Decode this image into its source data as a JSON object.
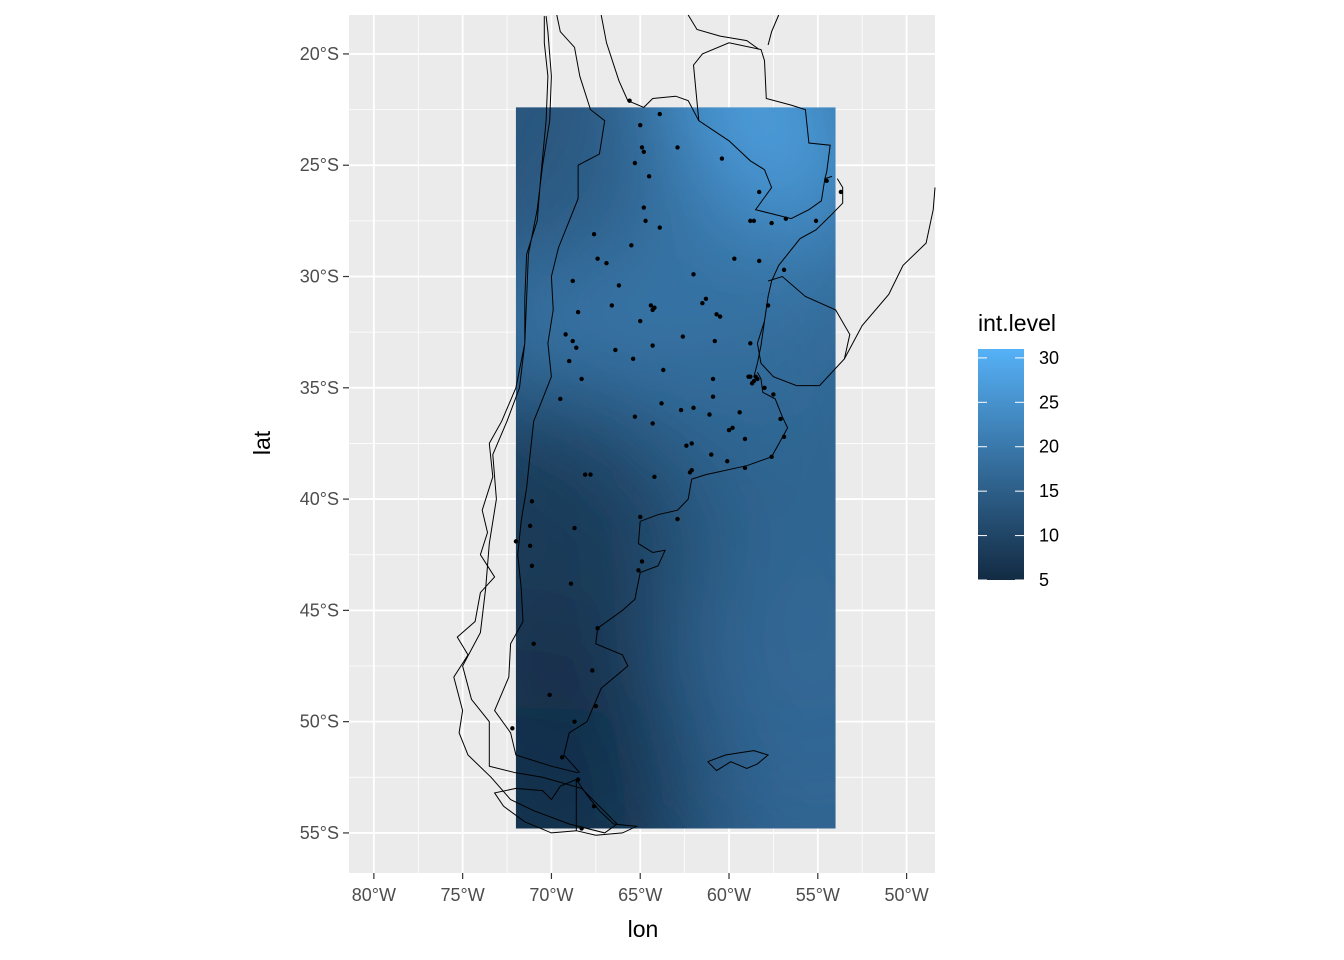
{
  "chart_data": {
    "type": "heatmap",
    "title": "",
    "xlabel": "lon",
    "ylabel": "lat",
    "xlim": [
      -81.4,
      -48.4
    ],
    "ylim": [
      -56.8,
      -18.25
    ],
    "x_ticks": [
      -80,
      -75,
      -70,
      -65,
      -60,
      -55,
      -50
    ],
    "x_tick_labels": [
      "80°W",
      "75°W",
      "70°W",
      "65°W",
      "60°W",
      "55°W",
      "50°W"
    ],
    "y_ticks": [
      -20,
      -25,
      -30,
      -35,
      -40,
      -45,
      -50,
      -55
    ],
    "y_tick_labels": [
      "20°S",
      "25°S",
      "30°S",
      "35°S",
      "40°S",
      "45°S",
      "50°S",
      "55°S"
    ],
    "grid": true,
    "fill_extent": {
      "lon": [
        -72,
        -54
      ],
      "lat": [
        -54.8,
        -22.4
      ]
    },
    "legend": {
      "title": "int.level",
      "placement": "right",
      "range": [
        5,
        31
      ],
      "ticks": [
        5,
        10,
        15,
        20,
        25,
        30
      ],
      "tick_labels": [
        "5",
        "10",
        "15",
        "20",
        "25",
        "30"
      ],
      "color_low": "#132B43",
      "color_high": "#56B1F7"
    },
    "field_hotspots": [
      {
        "lon": -60.5,
        "lat": -25.0,
        "value": 30
      },
      {
        "lon": -66.0,
        "lat": -30.5,
        "value": 22
      },
      {
        "lon": -62.0,
        "lat": -33.0,
        "value": 21
      },
      {
        "lon": -58.0,
        "lat": -35.0,
        "value": 18
      },
      {
        "lon": -56.0,
        "lat": -42.0,
        "value": 16
      },
      {
        "lon": -55.0,
        "lat": -50.0,
        "value": 17
      },
      {
        "lon": -70.5,
        "lat": -42.0,
        "value": 7
      },
      {
        "lon": -70.0,
        "lat": -53.0,
        "value": 5
      },
      {
        "lon": -71.0,
        "lat": -23.0,
        "value": 13
      }
    ],
    "stations": [
      [
        -65.6,
        -22.1
      ],
      [
        -63.9,
        -22.7
      ],
      [
        -65.0,
        -23.2
      ],
      [
        -62.9,
        -24.2
      ],
      [
        -60.4,
        -24.7
      ],
      [
        -64.9,
        -24.2
      ],
      [
        -64.8,
        -24.4
      ],
      [
        -65.3,
        -24.9
      ],
      [
        -64.5,
        -25.5
      ],
      [
        -58.3,
        -26.2
      ],
      [
        -54.5,
        -25.7
      ],
      [
        -53.7,
        -26.2
      ],
      [
        -64.8,
        -26.9
      ],
      [
        -64.7,
        -27.5
      ],
      [
        -63.9,
        -27.8
      ],
      [
        -58.8,
        -27.5
      ],
      [
        -58.6,
        -27.5
      ],
      [
        -56.8,
        -27.4
      ],
      [
        -57.6,
        -27.6
      ],
      [
        -55.1,
        -27.5
      ],
      [
        -67.6,
        -28.1
      ],
      [
        -65.5,
        -28.6
      ],
      [
        -59.7,
        -29.2
      ],
      [
        -58.3,
        -29.3
      ],
      [
        -67.4,
        -29.2
      ],
      [
        -66.9,
        -29.4
      ],
      [
        -56.9,
        -29.7
      ],
      [
        -62.0,
        -29.9
      ],
      [
        -66.2,
        -30.4
      ],
      [
        -68.8,
        -30.2
      ],
      [
        -61.3,
        -31.0
      ],
      [
        -61.5,
        -31.2
      ],
      [
        -64.4,
        -31.3
      ],
      [
        -64.2,
        -31.4
      ],
      [
        -64.3,
        -31.5
      ],
      [
        -66.6,
        -31.3
      ],
      [
        -68.5,
        -31.6
      ],
      [
        -60.7,
        -31.7
      ],
      [
        -60.5,
        -31.8
      ],
      [
        -57.8,
        -31.3
      ],
      [
        -65.0,
        -32.0
      ],
      [
        -62.6,
        -32.7
      ],
      [
        -60.8,
        -32.9
      ],
      [
        -58.8,
        -33.0
      ],
      [
        -69.2,
        -32.6
      ],
      [
        -68.8,
        -32.9
      ],
      [
        -68.6,
        -33.2
      ],
      [
        -64.3,
        -33.1
      ],
      [
        -66.4,
        -33.3
      ],
      [
        -65.4,
        -33.7
      ],
      [
        -69.0,
        -33.8
      ],
      [
        -63.7,
        -34.2
      ],
      [
        -58.9,
        -34.5
      ],
      [
        -58.8,
        -34.5
      ],
      [
        -58.5,
        -34.5
      ],
      [
        -58.6,
        -34.7
      ],
      [
        -58.4,
        -34.6
      ],
      [
        -58.7,
        -34.8
      ],
      [
        -58.0,
        -35.0
      ],
      [
        -60.9,
        -34.6
      ],
      [
        -68.3,
        -34.6
      ],
      [
        -57.5,
        -35.3
      ],
      [
        -69.5,
        -35.5
      ],
      [
        -60.9,
        -35.4
      ],
      [
        -63.8,
        -35.7
      ],
      [
        -62.7,
        -36.0
      ],
      [
        -62.0,
        -35.9
      ],
      [
        -61.1,
        -36.2
      ],
      [
        -65.3,
        -36.3
      ],
      [
        -64.3,
        -36.6
      ],
      [
        -59.4,
        -36.1
      ],
      [
        -59.8,
        -36.8
      ],
      [
        -60.0,
        -36.9
      ],
      [
        -57.1,
        -36.4
      ],
      [
        -59.1,
        -37.3
      ],
      [
        -56.9,
        -37.2
      ],
      [
        -62.1,
        -37.5
      ],
      [
        -62.4,
        -37.6
      ],
      [
        -61.0,
        -38.0
      ],
      [
        -60.1,
        -38.3
      ],
      [
        -57.6,
        -38.1
      ],
      [
        -59.1,
        -38.6
      ],
      [
        -62.1,
        -38.7
      ],
      [
        -62.2,
        -38.8
      ],
      [
        -67.8,
        -38.9
      ],
      [
        -68.1,
        -38.9
      ],
      [
        -64.2,
        -39.0
      ],
      [
        -71.1,
        -40.1
      ],
      [
        -65.0,
        -40.8
      ],
      [
        -62.9,
        -40.9
      ],
      [
        -71.2,
        -41.2
      ],
      [
        -68.7,
        -41.3
      ],
      [
        -72.0,
        -41.9
      ],
      [
        -71.2,
        -42.1
      ],
      [
        -64.9,
        -42.8
      ],
      [
        -65.1,
        -43.2
      ],
      [
        -71.1,
        -43.0
      ],
      [
        -68.9,
        -43.8
      ],
      [
        -67.4,
        -45.8
      ],
      [
        -71.0,
        -46.5
      ],
      [
        -67.7,
        -47.7
      ],
      [
        -70.1,
        -48.8
      ],
      [
        -67.5,
        -49.3
      ],
      [
        -68.7,
        -50.0
      ],
      [
        -72.2,
        -50.3
      ],
      [
        -69.4,
        -51.6
      ],
      [
        -68.5,
        -52.6
      ],
      [
        -67.6,
        -53.8
      ],
      [
        -68.3,
        -54.8
      ]
    ],
    "borders": [
      [
        [
          -70.4,
          -18.3
        ],
        [
          -70.4,
          -19.5
        ],
        [
          -70.2,
          -21.0
        ],
        [
          -70.3,
          -23.0
        ],
        [
          -70.6,
          -25.5
        ],
        [
          -70.8,
          -27.5
        ],
        [
          -71.4,
          -29.0
        ],
        [
          -71.5,
          -31.0
        ],
        [
          -71.5,
          -33.0
        ],
        [
          -72.0,
          -35.0
        ],
        [
          -72.8,
          -36.5
        ],
        [
          -73.5,
          -37.5
        ],
        [
          -73.3,
          -39.0
        ],
        [
          -73.9,
          -40.5
        ],
        [
          -73.6,
          -41.5
        ],
        [
          -74.0,
          -42.5
        ],
        [
          -73.2,
          -43.5
        ],
        [
          -74.0,
          -44.2
        ],
        [
          -74.3,
          -45.5
        ],
        [
          -75.3,
          -46.2
        ],
        [
          -74.7,
          -47.0
        ],
        [
          -75.5,
          -48.0
        ],
        [
          -75.0,
          -49.5
        ],
        [
          -75.2,
          -50.5
        ],
        [
          -74.7,
          -51.5
        ],
        [
          -73.4,
          -52.5
        ],
        [
          -72.3,
          -53.5
        ],
        [
          -71.0,
          -54.0
        ],
        [
          -69.0,
          -54.6
        ],
        [
          -67.0,
          -55.0
        ],
        [
          -66.3,
          -54.6
        ],
        [
          -68.3,
          -53.0
        ],
        [
          -70.5,
          -52.5
        ],
        [
          -72.0,
          -52.3
        ],
        [
          -73.5,
          -52.0
        ],
        [
          -73.5,
          -50.0
        ],
        [
          -74.5,
          -49.0
        ],
        [
          -75.0,
          -47.5
        ],
        [
          -74.0,
          -46.0
        ],
        [
          -73.7,
          -44.0
        ],
        [
          -73.5,
          -42.0
        ],
        [
          -73.1,
          -40.0
        ],
        [
          -73.3,
          -38.0
        ],
        [
          -72.5,
          -36.5
        ],
        [
          -71.8,
          -35.0
        ],
        [
          -71.5,
          -33.0
        ],
        [
          -71.4,
          -31.0
        ],
        [
          -71.3,
          -29.0
        ],
        [
          -70.8,
          -27.0
        ],
        [
          -70.5,
          -25.0
        ],
        [
          -70.1,
          -23.0
        ],
        [
          -70.0,
          -21.0
        ],
        [
          -70.2,
          -19.0
        ],
        [
          -70.3,
          -18.3
        ]
      ],
      [
        [
          -69.7,
          -18.25
        ],
        [
          -69.5,
          -19.0
        ],
        [
          -68.7,
          -19.7
        ],
        [
          -68.4,
          -21.0
        ],
        [
          -67.8,
          -22.5
        ],
        [
          -67.0,
          -23.0
        ],
        [
          -67.3,
          -24.5
        ],
        [
          -68.5,
          -25.0
        ],
        [
          -68.5,
          -26.5
        ],
        [
          -69.0,
          -27.5
        ],
        [
          -69.6,
          -28.7
        ],
        [
          -70.0,
          -30.0
        ],
        [
          -69.9,
          -31.5
        ],
        [
          -70.2,
          -33.0
        ],
        [
          -70.0,
          -34.5
        ],
        [
          -70.5,
          -35.5
        ],
        [
          -71.0,
          -36.5
        ],
        [
          -71.2,
          -38.0
        ],
        [
          -71.4,
          -39.5
        ],
        [
          -71.7,
          -41.0
        ],
        [
          -71.9,
          -42.5
        ],
        [
          -71.7,
          -44.0
        ],
        [
          -71.6,
          -45.5
        ],
        [
          -72.3,
          -46.5
        ],
        [
          -72.4,
          -48.0
        ],
        [
          -73.2,
          -49.5
        ],
        [
          -72.3,
          -50.5
        ],
        [
          -72.0,
          -51.5
        ],
        [
          -70.0,
          -52.0
        ],
        [
          -68.5,
          -52.3
        ]
      ],
      [
        [
          -68.6,
          -52.6
        ],
        [
          -68.6,
          -54.9
        ]
      ],
      [
        [
          -67.2,
          -18.25
        ],
        [
          -66.9,
          -19.5
        ],
        [
          -66.2,
          -21.2
        ],
        [
          -65.7,
          -22.1
        ],
        [
          -64.8,
          -22.4
        ],
        [
          -64.3,
          -22.0
        ],
        [
          -63.0,
          -21.9
        ],
        [
          -62.3,
          -22.1
        ],
        [
          -61.7,
          -23.0
        ],
        [
          -60.0,
          -23.9
        ],
        [
          -58.8,
          -24.8
        ],
        [
          -58.0,
          -25.2
        ],
        [
          -57.6,
          -26.0
        ],
        [
          -58.5,
          -27.0
        ],
        [
          -56.5,
          -27.4
        ],
        [
          -55.5,
          -27.0
        ],
        [
          -54.8,
          -26.6
        ],
        [
          -54.6,
          -25.6
        ],
        [
          -54.2,
          -25.5
        ]
      ],
      [
        [
          -61.7,
          -23.0
        ],
        [
          -62.0,
          -20.5
        ],
        [
          -61.5,
          -20.0
        ],
        [
          -60.0,
          -19.5
        ],
        [
          -58.2,
          -19.8
        ],
        [
          -58.0,
          -20.3
        ],
        [
          -57.9,
          -22.0
        ],
        [
          -56.5,
          -22.3
        ],
        [
          -55.7,
          -22.5
        ],
        [
          -55.5,
          -24.0
        ],
        [
          -54.3,
          -24.1
        ],
        [
          -54.5,
          -25.3
        ],
        [
          -54.6,
          -25.6
        ]
      ],
      [
        [
          -62.3,
          -18.25
        ],
        [
          -61.8,
          -18.9
        ],
        [
          -60.5,
          -19.2
        ],
        [
          -59.0,
          -19.4
        ],
        [
          -58.3,
          -19.8
        ]
      ],
      [
        [
          -57.2,
          -18.25
        ],
        [
          -57.6,
          -19.0
        ],
        [
          -57.8,
          -19.6
        ]
      ],
      [
        [
          -53.9,
          -25.6
        ],
        [
          -53.6,
          -26.0
        ],
        [
          -53.6,
          -26.7
        ],
        [
          -54.2,
          -27.2
        ],
        [
          -55.1,
          -27.9
        ],
        [
          -56.0,
          -28.3
        ],
        [
          -57.2,
          -29.5
        ],
        [
          -57.6,
          -30.2
        ],
        [
          -57.8,
          -30.9
        ],
        [
          -58.0,
          -32.0
        ],
        [
          -58.2,
          -33.1
        ],
        [
          -58.4,
          -33.9
        ],
        [
          -58.6,
          -34.5
        ]
      ],
      [
        [
          -58.4,
          -34.3
        ],
        [
          -58.2,
          -34.6
        ],
        [
          -58.1,
          -35.2
        ],
        [
          -57.4,
          -35.5
        ],
        [
          -57.0,
          -36.3
        ],
        [
          -56.7,
          -36.8
        ],
        [
          -57.6,
          -38.1
        ],
        [
          -59.0,
          -38.5
        ],
        [
          -61.3,
          -38.9
        ],
        [
          -62.1,
          -39.1
        ],
        [
          -62.3,
          -40.0
        ],
        [
          -62.9,
          -40.5
        ],
        [
          -64.0,
          -40.7
        ],
        [
          -65.0,
          -41.0
        ],
        [
          -65.1,
          -42.0
        ],
        [
          -64.3,
          -42.4
        ],
        [
          -63.6,
          -42.3
        ],
        [
          -64.0,
          -43.0
        ],
        [
          -65.0,
          -43.3
        ],
        [
          -65.3,
          -44.5
        ],
        [
          -66.0,
          -45.0
        ],
        [
          -67.4,
          -45.8
        ],
        [
          -67.5,
          -46.5
        ],
        [
          -66.0,
          -47.0
        ],
        [
          -65.7,
          -47.5
        ],
        [
          -67.2,
          -48.5
        ],
        [
          -68.0,
          -50.0
        ],
        [
          -69.0,
          -50.5
        ],
        [
          -69.3,
          -51.5
        ],
        [
          -68.4,
          -52.3
        ]
      ],
      [
        [
          -57.8,
          -30.2
        ],
        [
          -57.0,
          -30.0
        ],
        [
          -55.7,
          -30.9
        ],
        [
          -54.0,
          -31.5
        ],
        [
          -53.2,
          -32.6
        ],
        [
          -53.5,
          -33.7
        ],
        [
          -54.9,
          -34.9
        ],
        [
          -56.2,
          -34.9
        ],
        [
          -57.5,
          -34.5
        ],
        [
          -58.2,
          -33.9
        ],
        [
          -58.4,
          -33.0
        ],
        [
          -58.0,
          -32.0
        ]
      ],
      [
        [
          -53.5,
          -33.7
        ],
        [
          -52.5,
          -32.2
        ],
        [
          -51.0,
          -30.8
        ],
        [
          -50.2,
          -29.5
        ],
        [
          -48.9,
          -28.5
        ],
        [
          -48.5,
          -27.0
        ],
        [
          -48.4,
          -26.0
        ]
      ],
      [
        [
          -68.6,
          -52.6
        ],
        [
          -68.0,
          -53.3
        ],
        [
          -67.3,
          -54.0
        ],
        [
          -66.5,
          -54.6
        ],
        [
          -65.2,
          -54.7
        ],
        [
          -66.0,
          -55.0
        ],
        [
          -67.5,
          -55.1
        ],
        [
          -68.6,
          -54.9
        ],
        [
          -70.0,
          -55.0
        ],
        [
          -71.5,
          -54.5
        ],
        [
          -72.7,
          -53.8
        ],
        [
          -73.2,
          -53.2
        ],
        [
          -72.0,
          -53.0
        ],
        [
          -70.5,
          -53.1
        ],
        [
          -70.0,
          -53.5
        ],
        [
          -69.5,
          -52.9
        ],
        [
          -68.6,
          -52.6
        ]
      ],
      [
        [
          -61.2,
          -51.8
        ],
        [
          -60.2,
          -51.5
        ],
        [
          -59.4,
          -51.4
        ],
        [
          -58.6,
          -51.3
        ],
        [
          -57.8,
          -51.5
        ],
        [
          -58.4,
          -51.9
        ],
        [
          -59.0,
          -52.1
        ],
        [
          -59.9,
          -51.8
        ],
        [
          -60.7,
          -52.2
        ],
        [
          -61.2,
          -51.8
        ]
      ]
    ]
  }
}
